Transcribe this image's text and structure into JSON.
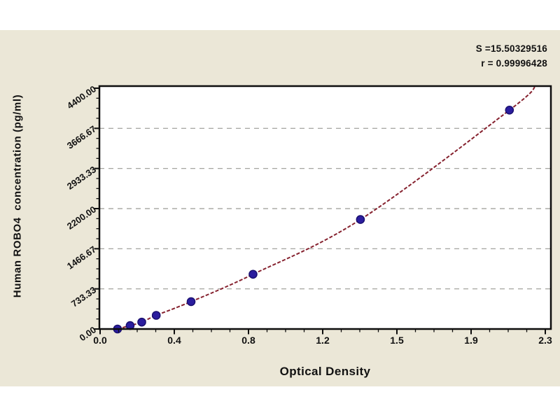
{
  "annotation": {
    "s_label": "S =15.50329516",
    "r_label": "r = 0.99996428"
  },
  "axes": {
    "x_title": "Optical Density",
    "y_title": "Human ROBO4  concentration (pg/ml)"
  },
  "chart_data": {
    "type": "scatter",
    "title": "",
    "xlabel": "Optical Density",
    "ylabel": "Human ROBO4 concentration (pg/ml)",
    "xlim": [
      0,
      2.3
    ],
    "ylim": [
      0,
      4400
    ],
    "x_tick_labels": [
      "0.0",
      "0.4",
      "0.8",
      "1.2",
      "1.5",
      "1.9",
      "2.3"
    ],
    "y_tick_labels": [
      "0.00",
      "733.33",
      "1466.67",
      "2200.00",
      "2933.33",
      "3666.67",
      "4400.00"
    ],
    "grid": "horizontal-dashed",
    "legend_position": "none",
    "series": [
      {
        "name": "standard-points",
        "type": "scatter",
        "marker": "circle",
        "x": [
          0.09,
          0.155,
          0.215,
          0.29,
          0.47,
          0.79,
          1.345,
          2.115
        ],
        "y": [
          0,
          62.5,
          125,
          250,
          500,
          1000,
          2000,
          4000
        ]
      },
      {
        "name": "fit-curve",
        "type": "line",
        "through": "standard-points",
        "curve_end": {
          "x": 2.25,
          "y": 4438
        }
      }
    ],
    "annotations": [
      "S =15.50329516",
      "r = 0.99996428"
    ],
    "colors": {
      "background": "#ebe7d7",
      "plot_background": "#ffffff",
      "frame": "#0d0d0d",
      "grid": "#9a9a94",
      "curve": "#86222f",
      "point_fill": "#2b1d9e",
      "point_stroke": "#190f6e",
      "text": "#111111"
    }
  }
}
